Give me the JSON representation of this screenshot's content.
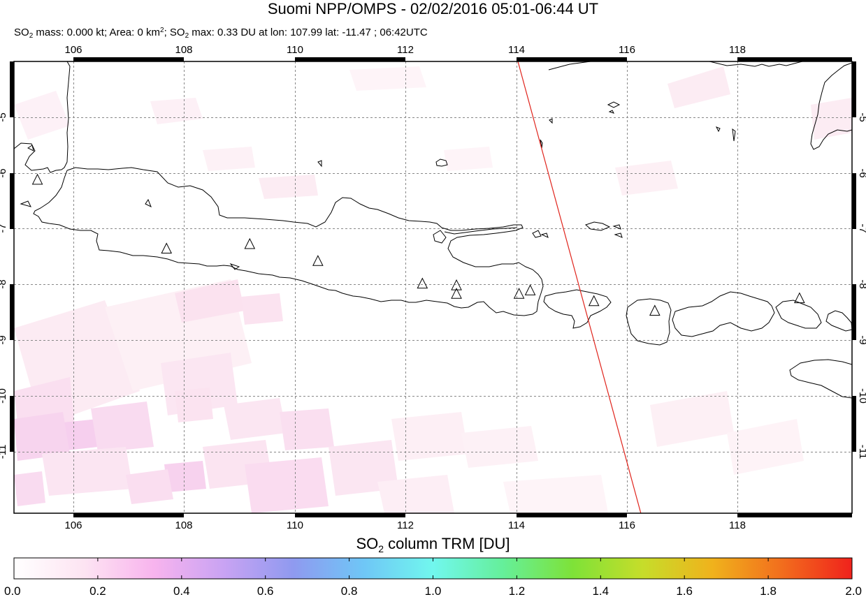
{
  "title": "Suomi NPP/OMPS - 02/02/2016 05:01-06:44 UT",
  "subtitle": {
    "p1": "SO",
    "p1_sub": "2",
    "p2": " mass: 0.000 kt; Area: 0 km",
    "p2_sup": "2",
    "p3": "; SO",
    "p3_sub": "2",
    "p4": " max: 0.33 DU at lon: 107.99 lat: -11.47 ; 06:42UTC"
  },
  "map": {
    "lon_range": [
      105,
      120
    ],
    "lat_range": [
      -12,
      -4
    ],
    "lon_ticks": [
      "106",
      "108",
      "110",
      "112",
      "114",
      "116",
      "118"
    ],
    "lat_ticks": [
      "-5",
      "-6",
      "-7",
      "-8",
      "-9",
      "-10",
      "-11"
    ],
    "volcanoes": [
      [
        105.42,
        -6.1
      ],
      [
        107.73,
        -7.32
      ],
      [
        109.22,
        -7.24
      ],
      [
        110.44,
        -7.54
      ],
      [
        112.31,
        -7.94
      ],
      [
        112.92,
        -7.97
      ],
      [
        112.92,
        -8.12
      ],
      [
        114.04,
        -8.12
      ],
      [
        114.24,
        -8.06
      ],
      [
        115.38,
        -8.25
      ],
      [
        116.47,
        -8.42
      ],
      [
        119.06,
        -8.2
      ]
    ],
    "orbit_edge": [
      [
        114.02,
        -4.0
      ],
      [
        116.22,
        -12.0
      ]
    ],
    "orbit_color": "#e0241c",
    "coast_color": "#000000"
  },
  "colorbar": {
    "title_pre": "SO",
    "title_sub": "2",
    "title_post": " column TRM [DU]",
    "tick_labels": [
      "0.0",
      "0.2",
      "0.4",
      "0.6",
      "0.8",
      "1.0",
      "1.2",
      "1.4",
      "1.6",
      "1.8",
      "2.0"
    ],
    "range": [
      0.0,
      2.0
    ],
    "colors": [
      "#ffffff",
      "#fde4f2",
      "#f8b4ee",
      "#c9a3f3",
      "#8f9af0",
      "#6fc6f6",
      "#71f7ee",
      "#65ef9a",
      "#7ee238",
      "#c6dd2a",
      "#f0b21c",
      "#f26d1d",
      "#f0221c"
    ]
  }
}
